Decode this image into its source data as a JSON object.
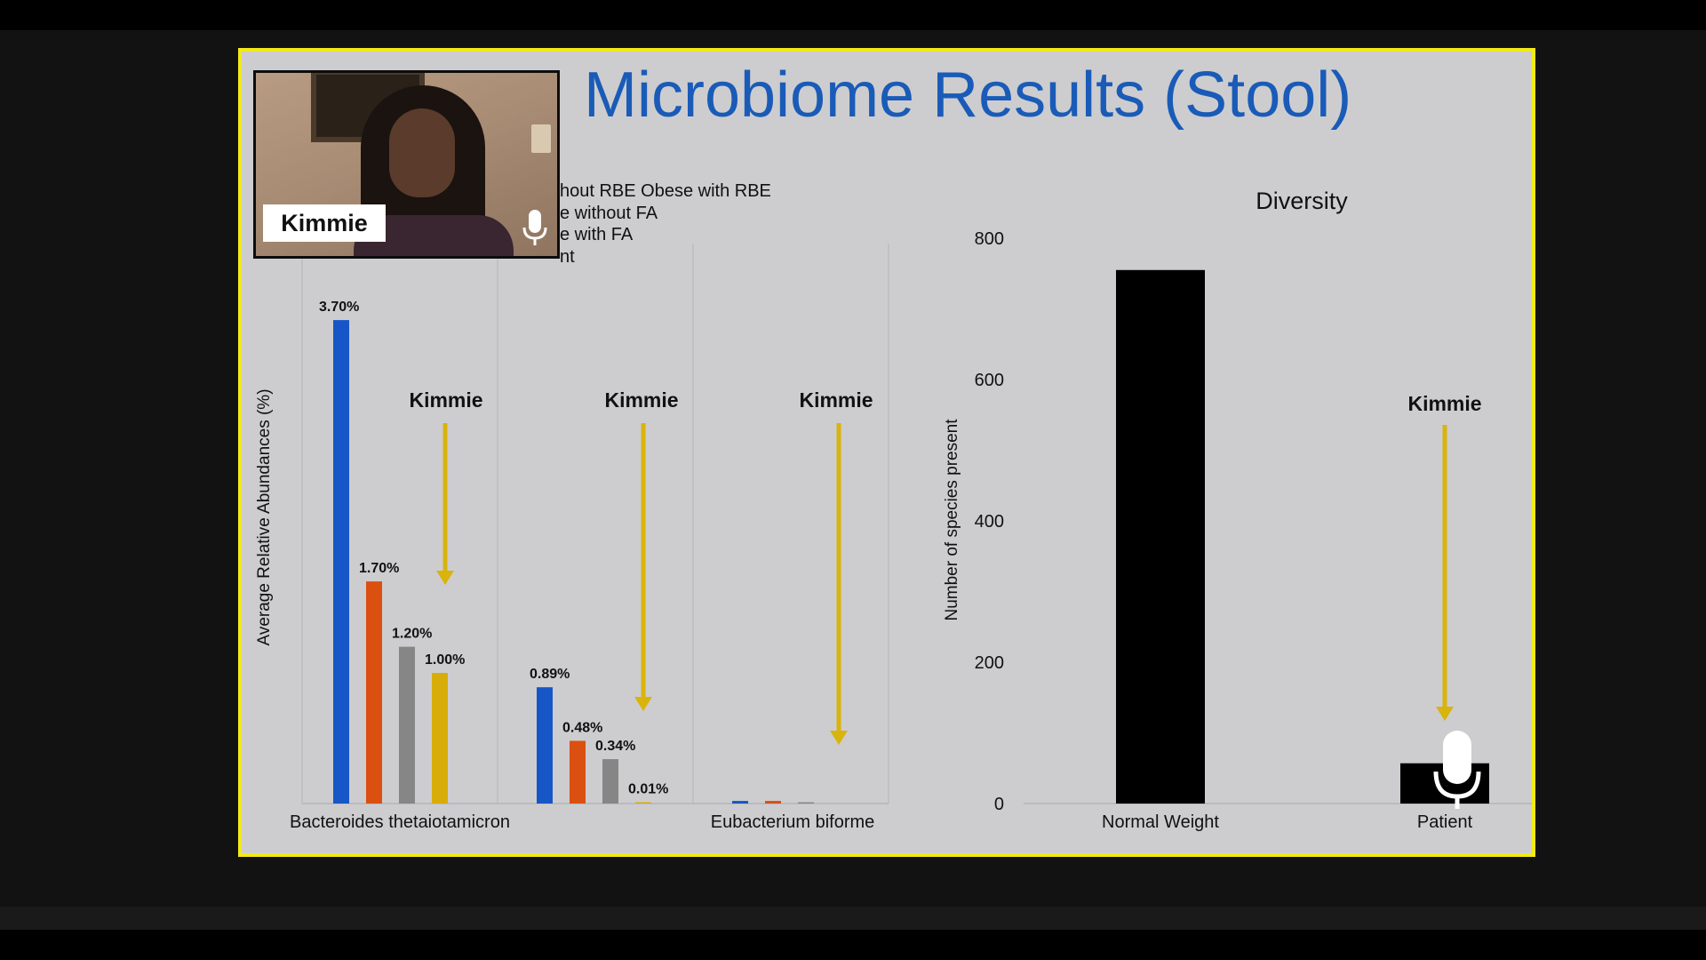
{
  "slide": {
    "title": "Microbiome Results (Stool)",
    "legend_lines": [
      "hout RBE  Obese with RBE",
      "e without FA",
      "e with FA",
      "nt"
    ],
    "annotation_label": "Kimmie"
  },
  "participant": {
    "name": "Kimmie",
    "icon": "microphone-icon"
  },
  "colors": {
    "slide_border": "#f2ea16",
    "title": "#1a5bb8",
    "series": [
      "#1756c6",
      "#db4f10",
      "#868686",
      "#d8ad0a"
    ],
    "arrow": "#d9b40c"
  },
  "chart_data": [
    {
      "type": "bar",
      "ylabel": "Average Relative Abundances (%)",
      "categories": [
        "Bacteroides thetaiotamicron",
        "",
        "Eubacterium biforme"
      ],
      "series": [
        {
          "values": [
            3.7,
            0.89,
            0.02
          ]
        },
        {
          "values": [
            1.7,
            0.48,
            0.02
          ]
        },
        {
          "values": [
            1.2,
            0.34,
            0.01
          ]
        },
        {
          "values": [
            1.0,
            0.01,
            0.0
          ]
        }
      ],
      "data_labels": [
        [
          "3.70%",
          "1.70%",
          "1.20%",
          "1.00%"
        ],
        [
          "0.89%",
          "0.48%",
          "0.34%",
          "0.01%"
        ],
        [
          "",
          "",
          "",
          ""
        ]
      ],
      "annotations": [
        "Kimmie",
        "Kimmie",
        "Kimmie"
      ],
      "ylim": [
        0,
        4
      ],
      "grid": false
    },
    {
      "type": "bar",
      "title": "Diversity",
      "ylabel": "Number of species present",
      "categories": [
        "Normal Weight",
        "Patient"
      ],
      "values": [
        755,
        57
      ],
      "yticks": [
        "0",
        "200",
        "400",
        "600",
        "800"
      ],
      "ylim": [
        0,
        800
      ],
      "annotations": [
        "Kimmie"
      ],
      "grid": false
    }
  ]
}
